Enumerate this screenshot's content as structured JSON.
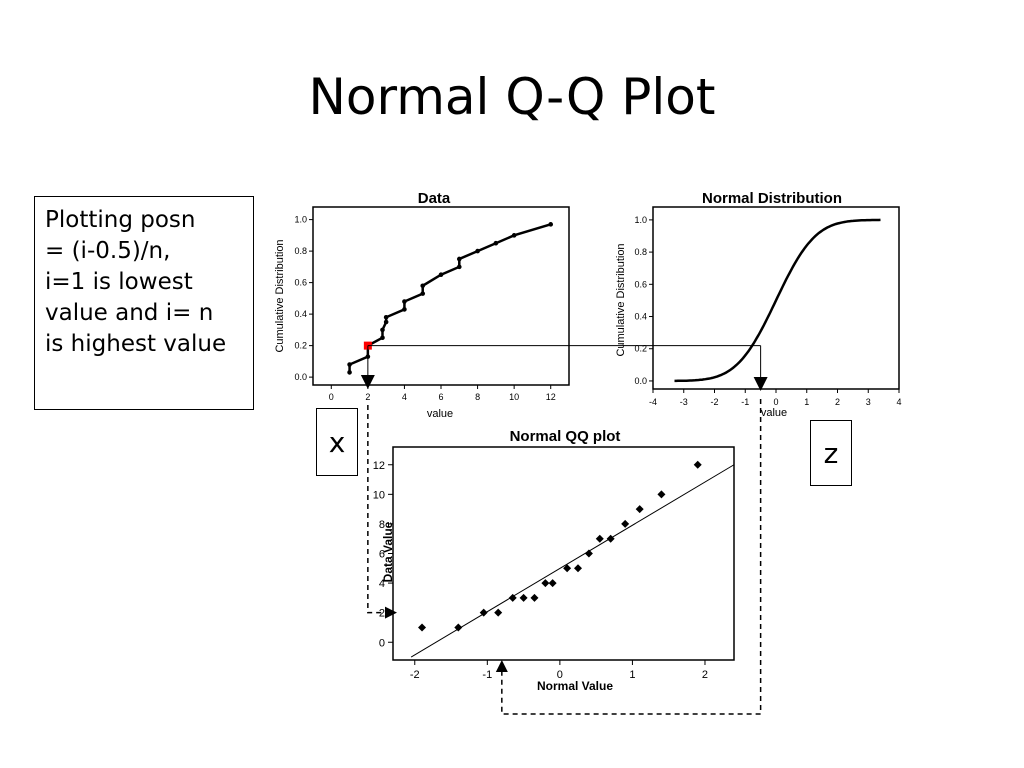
{
  "slide": {
    "title": "Normal Q-Q Plot",
    "note_lines": [
      "Plotting posn",
      "= (i-0.5)/n,",
      "i=1 is lowest",
      "value and i= n",
      "is highest value"
    ],
    "label_x": "x",
    "label_z": "z"
  },
  "chart_data": [
    {
      "id": "data-cdf",
      "type": "line",
      "title": "Data",
      "xlabel": "value",
      "ylabel": "Cumulative Distribution",
      "xlim": [
        -1,
        13
      ],
      "ylim": [
        -0.05,
        1.08
      ],
      "xticks": [
        "0",
        "2",
        "4",
        "6",
        "8",
        "10",
        "12"
      ],
      "yticks": [
        "0.0",
        "0.2",
        "0.4",
        "0.6",
        "0.8",
        "1.0"
      ],
      "series": [
        {
          "x": [
            1,
            1,
            2,
            2,
            2.8,
            2.8,
            3,
            3,
            4,
            4,
            5,
            5,
            6,
            7,
            7,
            8,
            9,
            10,
            12
          ],
          "y": [
            0.03,
            0.08,
            0.13,
            0.2,
            0.25,
            0.3,
            0.35,
            0.38,
            0.43,
            0.48,
            0.53,
            0.58,
            0.65,
            0.7,
            0.75,
            0.8,
            0.85,
            0.9,
            0.97
          ]
        }
      ],
      "highlight_point": {
        "x": 2,
        "y": 0.2,
        "color": "#ff0000"
      }
    },
    {
      "id": "normal-cdf",
      "type": "line",
      "title": "Normal Distribution",
      "xlabel": "value",
      "ylabel": "Cumulative Distribution",
      "xlim": [
        -4,
        4
      ],
      "ylim": [
        -0.05,
        1.08
      ],
      "xticks": [
        "-4",
        "-3",
        "-2",
        "-1",
        "0",
        "1",
        "2",
        "3",
        "4"
      ],
      "yticks": [
        "0.0",
        "0.2",
        "0.4",
        "0.6",
        "0.8",
        "1.0"
      ],
      "curve_range": [
        -3.3,
        3.4
      ],
      "marker_x": -0.5
    },
    {
      "id": "normal-qq",
      "type": "scatter",
      "title": "Normal QQ plot",
      "xlabel": "Normal Value",
      "ylabel": "Data Value",
      "xlim": [
        -2.3,
        2.4
      ],
      "ylim": [
        -1.2,
        13.2
      ],
      "xticks": [
        "-2",
        "-1",
        "0",
        "1",
        "2"
      ],
      "yticks": [
        "0",
        "2",
        "4",
        "6",
        "8",
        "10",
        "12"
      ],
      "points": [
        {
          "x": -1.9,
          "y": 1
        },
        {
          "x": -1.4,
          "y": 1
        },
        {
          "x": -1.05,
          "y": 2
        },
        {
          "x": -0.85,
          "y": 2
        },
        {
          "x": -0.65,
          "y": 3
        },
        {
          "x": -0.5,
          "y": 3
        },
        {
          "x": -0.35,
          "y": 3
        },
        {
          "x": -0.2,
          "y": 4
        },
        {
          "x": -0.1,
          "y": 4
        },
        {
          "x": 0.1,
          "y": 5
        },
        {
          "x": 0.25,
          "y": 5
        },
        {
          "x": 0.4,
          "y": 6
        },
        {
          "x": 0.55,
          "y": 7
        },
        {
          "x": 0.7,
          "y": 7
        },
        {
          "x": 0.9,
          "y": 8
        },
        {
          "x": 1.1,
          "y": 9
        },
        {
          "x": 1.4,
          "y": 10
        },
        {
          "x": 1.9,
          "y": 12
        }
      ],
      "fit_line": {
        "x": [
          -2.05,
          2.4
        ],
        "y": [
          -1.0,
          12.0
        ]
      },
      "marker_x": -0.8,
      "marker_y": 2
    }
  ]
}
